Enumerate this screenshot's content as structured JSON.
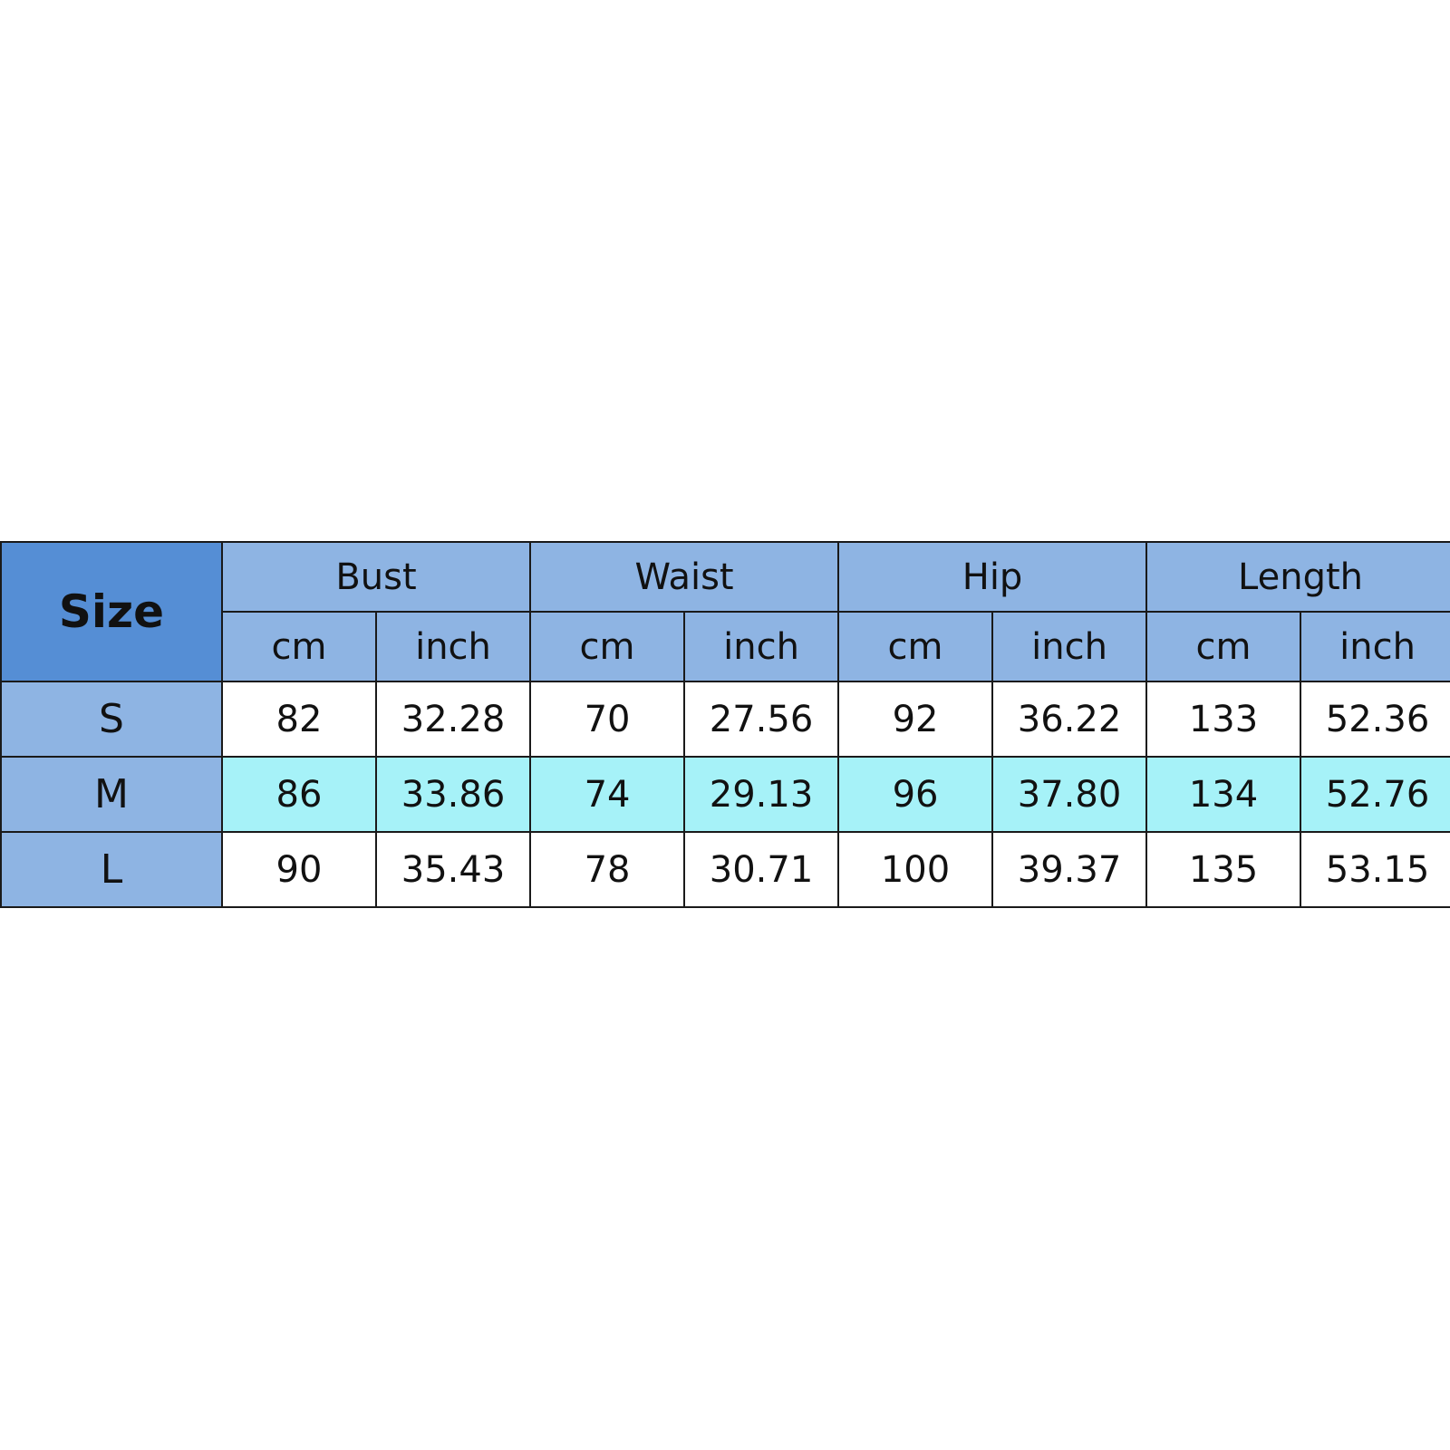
{
  "table": {
    "size_header": "Size",
    "groups": [
      "Bust",
      "Waist",
      "Hip",
      "Length"
    ],
    "units": [
      "cm",
      "inch"
    ],
    "rows": [
      {
        "size": "S",
        "values": [
          "82",
          "32.28",
          "70",
          "27.56",
          "92",
          "36.22",
          "133",
          "52.36"
        ],
        "highlight": false
      },
      {
        "size": "M",
        "values": [
          "86",
          "33.86",
          "74",
          "29.13",
          "96",
          "37.80",
          "134",
          "52.76"
        ],
        "highlight": true
      },
      {
        "size": "L",
        "values": [
          "90",
          "35.43",
          "78",
          "30.71",
          "100",
          "39.37",
          "135",
          "53.15"
        ],
        "highlight": false
      }
    ]
  },
  "colors": {
    "size_header": "#558ed5",
    "header": "#8eb4e3",
    "highlight_row": "#a6f2f8"
  }
}
